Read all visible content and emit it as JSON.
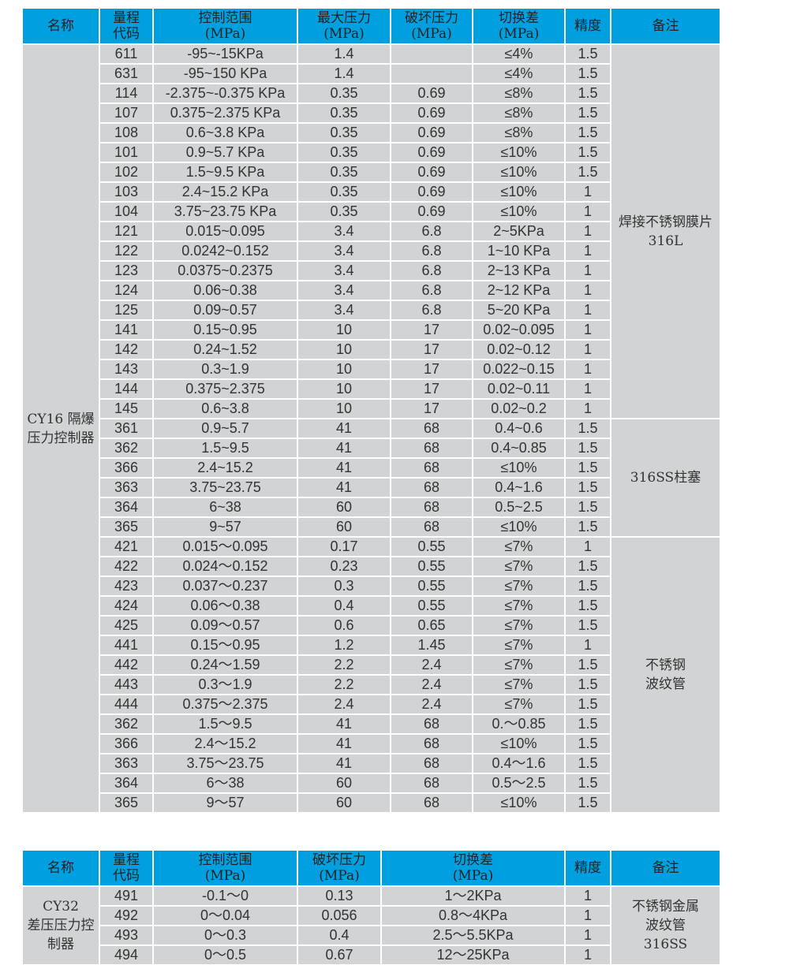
{
  "table1": {
    "headers": [
      "名称",
      "量程\n代码",
      "控制范围\n(MPa)",
      "最大压力\n(MPa)",
      "破坏压力\n(MPa)",
      "切换差\n(MPa)",
      "精度",
      "备注"
    ],
    "name": "CY16 隔爆\n压力控制器",
    "groups": [
      {
        "note": "焊接不锈钢膜片\n316L",
        "rows": [
          [
            "611",
            "-95~-15KPa",
            "1.4",
            "",
            "≤4%",
            "1.5"
          ],
          [
            "631",
            "-95~150 KPa",
            "1.4",
            "",
            "≤4%",
            "1.5"
          ],
          [
            "114",
            "-2.375~-0.375 KPa",
            "0.35",
            "0.69",
            "≤8%",
            "1.5"
          ],
          [
            "107",
            "0.375~2.375 KPa",
            "0.35",
            "0.69",
            "≤8%",
            "1.5"
          ],
          [
            "108",
            "0.6~3.8 KPa",
            "0.35",
            "0.69",
            "≤8%",
            "1.5"
          ],
          [
            "101",
            "0.9~5.7 KPa",
            "0.35",
            "0.69",
            "≤10%",
            "1.5"
          ],
          [
            "102",
            "1.5~9.5 KPa",
            "0.35",
            "0.69",
            "≤10%",
            "1.5"
          ],
          [
            "103",
            "2.4~15.2 KPa",
            "0.35",
            "0.69",
            "≤10%",
            "1"
          ],
          [
            "104",
            "3.75~23.75 KPa",
            "0.35",
            "0.69",
            "≤10%",
            "1"
          ],
          [
            "121",
            "0.015~0.095",
            "3.4",
            "6.8",
            "2~5KPa",
            "1"
          ],
          [
            "122",
            "0.0242~0.152",
            "3.4",
            "6.8",
            "1~10 KPa",
            "1"
          ],
          [
            "123",
            "0.0375~0.2375",
            "3.4",
            "6.8",
            "2~13 KPa",
            "1"
          ],
          [
            "124",
            "0.06~0.38",
            "3.4",
            "6.8",
            "2~12 KPa",
            "1"
          ],
          [
            "125",
            "0.09~0.57",
            "3.4",
            "6.8",
            "5~20 KPa",
            "1"
          ],
          [
            "141",
            "0.15~0.95",
            "10",
            "17",
            "0.02~0.095",
            "1"
          ],
          [
            "142",
            "0.24~1.52",
            "10",
            "17",
            "0.02~0.12",
            "1"
          ],
          [
            "143",
            "0.3~1.9",
            "10",
            "17",
            "0.022~0.15",
            "1"
          ],
          [
            "144",
            "0.375~2.375",
            "10",
            "17",
            "0.02~0.11",
            "1"
          ],
          [
            "145",
            "0.6~3.8",
            "10",
            "17",
            "0.02~0.2",
            "1"
          ]
        ]
      },
      {
        "note": "316SS柱塞",
        "rows": [
          [
            "361",
            "0.9~5.7",
            "41",
            "68",
            "0.4~0.6",
            "1.5"
          ],
          [
            "362",
            "1.5~9.5",
            "41",
            "68",
            "0.4~0.85",
            "1.5"
          ],
          [
            "366",
            "2.4~15.2",
            "41",
            "68",
            "≤10%",
            "1.5"
          ],
          [
            "363",
            "3.75~23.75",
            "41",
            "68",
            "0.4~1.6",
            "1.5"
          ],
          [
            "364",
            "6~38",
            "60",
            "68",
            "0.5~2.5",
            "1.5"
          ],
          [
            "365",
            "9~57",
            "60",
            "68",
            "≤10%",
            "1.5"
          ]
        ]
      },
      {
        "note": "不锈钢\n波纹管",
        "rows": [
          [
            "421",
            "0.015～0.095",
            "0.17",
            "0.55",
            "≤7%",
            "1"
          ],
          [
            "422",
            "0.024～0.152",
            "0.23",
            "0.55",
            "≤7%",
            "1.5"
          ],
          [
            "423",
            "0.037～0.237",
            "0.3",
            "0.55",
            "≤7%",
            "1.5"
          ],
          [
            "424",
            "0.06～0.38",
            "0.4",
            "0.55",
            "≤7%",
            "1.5"
          ],
          [
            "425",
            "0.09～0.57",
            "0.6",
            "0.65",
            "≤7%",
            "1.5"
          ],
          [
            "441",
            "0.15～0.95",
            "1.2",
            "1.45",
            "≤7%",
            "1"
          ],
          [
            "442",
            "0.24～1.59",
            "2.2",
            "2.4",
            "≤7%",
            "1.5"
          ],
          [
            "443",
            "0.3～1.9",
            "2.2",
            "2.4",
            "≤7%",
            "1.5"
          ],
          [
            "444",
            "0.375～2.375",
            "2.4",
            "2.4",
            "≤7%",
            "1.5"
          ],
          [
            "362",
            "1.5～9.5",
            "41",
            "68",
            "0.～0.85",
            "1.5"
          ],
          [
            "366",
            "2.4～15.2",
            "41",
            "68",
            "≤10%",
            "1.5"
          ],
          [
            "363",
            "3.75～23.75",
            "41",
            "68",
            "0.4～1.6",
            "1.5"
          ],
          [
            "364",
            "6～38",
            "60",
            "68",
            "0.5～2.5",
            "1.5"
          ],
          [
            "365",
            "9～57",
            "60",
            "68",
            "≤10%",
            "1.5"
          ]
        ]
      }
    ]
  },
  "table2": {
    "headers": [
      "名称",
      "量程\n代码",
      "控制范围\n(MPa)",
      "破坏压力\n(MPa)",
      "切换差\n(MPa)",
      "精度",
      "备注"
    ],
    "name": "CY32\n差压压力控\n制器",
    "groups": [
      {
        "note": "不锈钢金属\n波纹管\n316SS",
        "rows": [
          [
            "491",
            "-0.1～0",
            "0.13",
            "1～2KPa",
            "1"
          ],
          [
            "492",
            "0～0.04",
            "0.056",
            "0.8～4KPa",
            "1"
          ],
          [
            "493",
            "0～0.3",
            "0.4",
            "2.5～5.5KPa",
            "1"
          ],
          [
            "494",
            "0～0.5",
            "0.67",
            "12～25KPa",
            "1"
          ]
        ]
      }
    ]
  }
}
